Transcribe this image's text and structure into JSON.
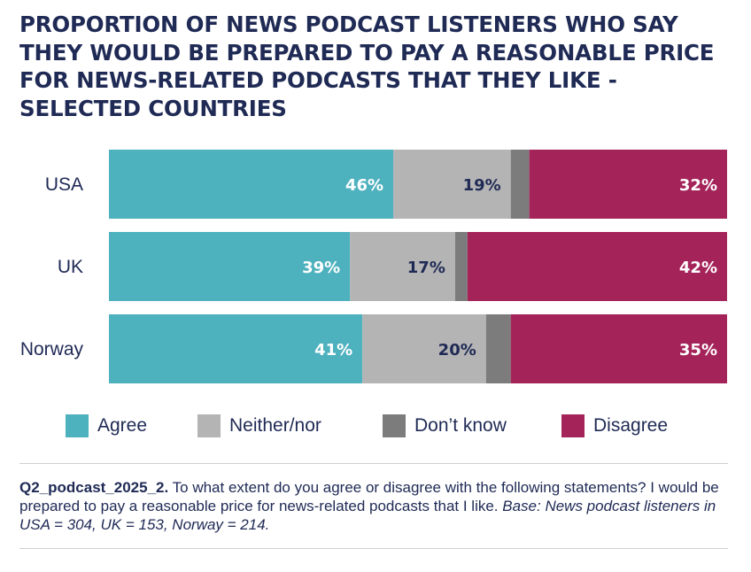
{
  "title": "PROPORTION OF NEWS PODCAST LISTENERS WHO SAY THEY WOULD BE PREPARED TO PAY A REASONABLE PRICE FOR NEWS-RELATED PODCASTS THAT THEY LIKE - SELECTED COUNTRIES",
  "chart_data": {
    "type": "bar",
    "orientation": "horizontal",
    "stacked": true,
    "categories": [
      "USA",
      "UK",
      "Norway"
    ],
    "series": [
      {
        "name": "Agree",
        "values": [
          46,
          39,
          41
        ],
        "color": "#4eb1be",
        "show_label": true,
        "label_color": "#ffffff"
      },
      {
        "name": "Neither/nor",
        "values": [
          19,
          17,
          20
        ],
        "color": "#b4b4b4",
        "show_label": true,
        "label_color": "#1f2a55"
      },
      {
        "name": "Don’t know",
        "values": [
          3,
          2,
          4
        ],
        "color": "#7c7c7c",
        "show_label": false,
        "label_color": "#ffffff"
      },
      {
        "name": "Disagree",
        "values": [
          32,
          42,
          35
        ],
        "color": "#a4245a",
        "show_label": true,
        "label_color": "#ffffff"
      }
    ],
    "label_suffix": "%",
    "xlim": [
      0,
      100
    ],
    "legend_position": "bottom"
  },
  "legend": [
    {
      "label": "Agree",
      "color": "#4eb1be"
    },
    {
      "label": "Neither/nor",
      "color": "#b4b4b4"
    },
    {
      "label": "Don’t know",
      "color": "#7c7c7c"
    },
    {
      "label": "Disagree",
      "color": "#a4245a"
    }
  ],
  "note": {
    "question_id": "Q2_podcast_2025_2.",
    "question_text": " To what extent do you agree or disagree with the following statements? I would be prepared to pay a reasonable price for news-related podcasts that I like.",
    "base": " Base: News podcast listeners in USA = 304, UK = 153, Norway = 214."
  }
}
